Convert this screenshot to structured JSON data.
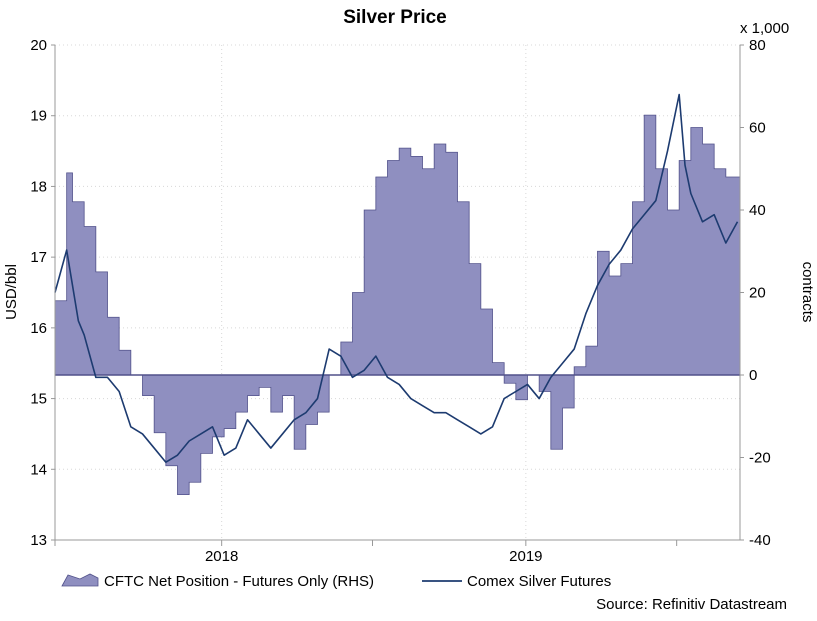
{
  "chart_data": {
    "type": "line",
    "title": "Silver Price",
    "ylabel": "USD/bbl",
    "y2label": "contracts",
    "y2_multiplier": "x 1,000",
    "ylim": [
      13,
      20
    ],
    "y2lim": [
      -40,
      80
    ],
    "yticks": [
      13,
      14,
      15,
      16,
      17,
      18,
      19,
      20
    ],
    "y2ticks": [
      -40,
      -20,
      0,
      20,
      40,
      60,
      80
    ],
    "xlim": [
      "2017-06-15",
      "2019-09-15"
    ],
    "xtick_labels": [
      {
        "label": "2018",
        "date": "2018-01-01"
      },
      {
        "label": "2019",
        "date": "2019-01-01"
      }
    ],
    "xdividers": [
      "2017-06-15",
      "2018-07-01",
      "2019-07-01"
    ],
    "grid": true,
    "legend_position": "bottom",
    "source": "Source: Refinitiv Datastream",
    "colors": {
      "area_fill": "#8f8fc0",
      "area_stroke": "#51518a",
      "line": "#1d3b70",
      "axis": "#999999",
      "grid": "#d8d8d8"
    },
    "series": [
      {
        "name": "CFTC Net Position - Futures Only (RHS)",
        "kind": "area",
        "axis": "right",
        "x": [
          "2017-06-15",
          "2017-06-29",
          "2017-07-06",
          "2017-07-20",
          "2017-08-03",
          "2017-08-17",
          "2017-08-31",
          "2017-09-14",
          "2017-09-28",
          "2017-10-12",
          "2017-10-26",
          "2017-11-09",
          "2017-11-23",
          "2017-12-07",
          "2017-12-21",
          "2018-01-04",
          "2018-01-18",
          "2018-02-01",
          "2018-02-15",
          "2018-03-01",
          "2018-03-15",
          "2018-03-29",
          "2018-04-12",
          "2018-04-26",
          "2018-05-10",
          "2018-05-24",
          "2018-06-07",
          "2018-06-21",
          "2018-07-05",
          "2018-07-19",
          "2018-08-02",
          "2018-08-16",
          "2018-08-30",
          "2018-09-13",
          "2018-09-27",
          "2018-10-11",
          "2018-10-25",
          "2018-11-08",
          "2018-11-22",
          "2018-12-06",
          "2018-12-20",
          "2019-01-03",
          "2019-01-17",
          "2019-01-31",
          "2019-02-14",
          "2019-02-28",
          "2019-03-14",
          "2019-03-28",
          "2019-04-11",
          "2019-04-25",
          "2019-05-09",
          "2019-05-23",
          "2019-06-06",
          "2019-06-20",
          "2019-07-04",
          "2019-07-18",
          "2019-08-01",
          "2019-08-15",
          "2019-08-29",
          "2019-09-12"
        ],
        "values": [
          18,
          49,
          42,
          36,
          25,
          14,
          6,
          0,
          -5,
          -14,
          -22,
          -29,
          -26,
          -19,
          -15,
          -13,
          -9,
          -5,
          -3,
          -9,
          -5,
          -18,
          -12,
          -9,
          0,
          8,
          20,
          40,
          48,
          52,
          55,
          53,
          50,
          56,
          54,
          42,
          27,
          16,
          3,
          -2,
          -6,
          0,
          -4,
          -18,
          -8,
          2,
          7,
          30,
          24,
          27,
          42,
          63,
          50,
          40,
          52,
          60,
          56,
          50,
          48,
          48
        ]
      },
      {
        "name": "Comex Silver Futures",
        "kind": "line",
        "axis": "left",
        "x": [
          "2017-06-15",
          "2017-06-29",
          "2017-07-06",
          "2017-07-13",
          "2017-07-20",
          "2017-08-03",
          "2017-08-17",
          "2017-08-31",
          "2017-09-14",
          "2017-09-28",
          "2017-10-12",
          "2017-10-26",
          "2017-11-09",
          "2017-11-23",
          "2017-12-07",
          "2017-12-21",
          "2018-01-04",
          "2018-01-18",
          "2018-02-01",
          "2018-02-15",
          "2018-03-01",
          "2018-03-15",
          "2018-03-29",
          "2018-04-12",
          "2018-04-26",
          "2018-05-10",
          "2018-05-24",
          "2018-06-07",
          "2018-06-21",
          "2018-07-05",
          "2018-07-19",
          "2018-08-02",
          "2018-08-16",
          "2018-08-30",
          "2018-09-13",
          "2018-09-27",
          "2018-10-11",
          "2018-10-25",
          "2018-11-08",
          "2018-11-22",
          "2018-12-06",
          "2018-12-20",
          "2019-01-03",
          "2019-01-17",
          "2019-01-31",
          "2019-02-14",
          "2019-02-28",
          "2019-03-14",
          "2019-03-28",
          "2019-04-11",
          "2019-04-25",
          "2019-05-09",
          "2019-05-23",
          "2019-06-06",
          "2019-06-20",
          "2019-07-04",
          "2019-07-11",
          "2019-07-18",
          "2019-08-01",
          "2019-08-15",
          "2019-08-29",
          "2019-09-12"
        ],
        "values": [
          16.5,
          17.1,
          16.6,
          16.1,
          15.9,
          15.3,
          15.3,
          15.1,
          14.6,
          14.5,
          14.3,
          14.1,
          14.2,
          14.4,
          14.5,
          14.6,
          14.2,
          14.3,
          14.7,
          14.5,
          14.3,
          14.5,
          14.7,
          14.8,
          15.0,
          15.7,
          15.6,
          15.3,
          15.4,
          15.6,
          15.3,
          15.2,
          15.0,
          14.9,
          14.8,
          14.8,
          14.7,
          14.6,
          14.5,
          14.6,
          15.0,
          15.1,
          15.2,
          15.0,
          15.3,
          15.5,
          15.7,
          16.2,
          16.6,
          16.9,
          17.1,
          17.4,
          17.6,
          17.8,
          18.5,
          19.3,
          18.3,
          17.9,
          17.5,
          17.6,
          17.2,
          17.5
        ]
      }
    ]
  }
}
